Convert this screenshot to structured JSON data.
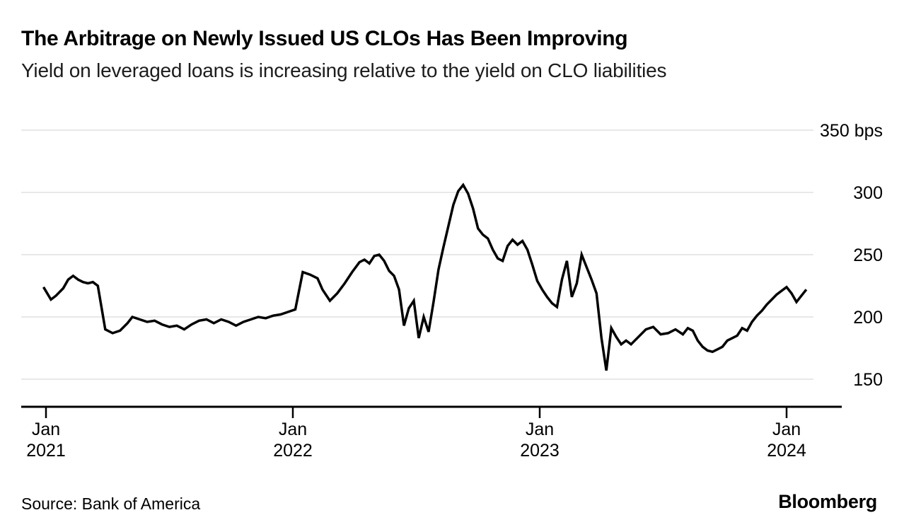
{
  "header": {
    "title": "The Arbitrage on Newly Issued US CLOs Has Been Improving",
    "subtitle": "Yield on leveraged loans is increasing relative to the yield on CLO liabilities"
  },
  "footer": {
    "source_label": "Source: Bank of America",
    "brand": "Bloomberg"
  },
  "chart_data": {
    "type": "line",
    "title": "The Arbitrage on Newly Issued US CLOs Has Been Improving",
    "subtitle": "Yield on leveraged loans is increasing relative to the yield on CLO liabilities",
    "unit": "bps",
    "line_color": "#000000",
    "grid_color": "#d9d9d9",
    "axis_color": "#000000",
    "legend": "none",
    "grid": true,
    "y_axis": {
      "side": "right",
      "ticks": [
        150,
        200,
        250,
        300,
        350
      ],
      "labels": [
        "150",
        "200",
        "250",
        "300",
        "350 bps"
      ],
      "range": [
        140,
        360
      ]
    },
    "x_axis": {
      "ticks": [
        {
          "month": "Jan",
          "year": "2021",
          "t": 2021.0
        },
        {
          "month": "Jan",
          "year": "2022",
          "t": 2022.0
        },
        {
          "month": "Jan",
          "year": "2023",
          "t": 2023.0
        },
        {
          "month": "Jan",
          "year": "2024",
          "t": 2024.0
        }
      ],
      "range": [
        2020.97,
        2024.22
      ]
    },
    "series": [
      {
        "name": "arbitrage_bps",
        "points": [
          [
            2020.99,
            224
          ],
          [
            2021.02,
            214
          ],
          [
            2021.04,
            217
          ],
          [
            2021.07,
            223
          ],
          [
            2021.09,
            230
          ],
          [
            2021.11,
            233
          ],
          [
            2021.13,
            230
          ],
          [
            2021.15,
            228
          ],
          [
            2021.17,
            227
          ],
          [
            2021.19,
            228
          ],
          [
            2021.21,
            225
          ],
          [
            2021.24,
            190
          ],
          [
            2021.27,
            187
          ],
          [
            2021.3,
            189
          ],
          [
            2021.33,
            195
          ],
          [
            2021.35,
            200
          ],
          [
            2021.38,
            198
          ],
          [
            2021.41,
            196
          ],
          [
            2021.44,
            197
          ],
          [
            2021.47,
            194
          ],
          [
            2021.5,
            192
          ],
          [
            2021.53,
            193
          ],
          [
            2021.56,
            190
          ],
          [
            2021.59,
            194
          ],
          [
            2021.62,
            197
          ],
          [
            2021.65,
            198
          ],
          [
            2021.68,
            195
          ],
          [
            2021.71,
            198
          ],
          [
            2021.74,
            196
          ],
          [
            2021.77,
            193
          ],
          [
            2021.8,
            196
          ],
          [
            2021.83,
            198
          ],
          [
            2021.86,
            200
          ],
          [
            2021.89,
            199
          ],
          [
            2021.92,
            201
          ],
          [
            2021.95,
            202
          ],
          [
            2021.98,
            204
          ],
          [
            2022.01,
            206
          ],
          [
            2022.04,
            236
          ],
          [
            2022.07,
            234
          ],
          [
            2022.1,
            231
          ],
          [
            2022.12,
            222
          ],
          [
            2022.15,
            213
          ],
          [
            2022.18,
            219
          ],
          [
            2022.21,
            227
          ],
          [
            2022.24,
            236
          ],
          [
            2022.27,
            244
          ],
          [
            2022.29,
            246
          ],
          [
            2022.31,
            243
          ],
          [
            2022.33,
            249
          ],
          [
            2022.35,
            250
          ],
          [
            2022.37,
            245
          ],
          [
            2022.39,
            237
          ],
          [
            2022.41,
            233
          ],
          [
            2022.43,
            222
          ],
          [
            2022.45,
            193
          ],
          [
            2022.47,
            207
          ],
          [
            2022.49,
            213
          ],
          [
            2022.51,
            183
          ],
          [
            2022.53,
            200
          ],
          [
            2022.55,
            188
          ],
          [
            2022.57,
            212
          ],
          [
            2022.59,
            238
          ],
          [
            2022.61,
            256
          ],
          [
            2022.63,
            273
          ],
          [
            2022.65,
            290
          ],
          [
            2022.67,
            301
          ],
          [
            2022.69,
            306
          ],
          [
            2022.71,
            299
          ],
          [
            2022.73,
            287
          ],
          [
            2022.75,
            271
          ],
          [
            2022.77,
            266
          ],
          [
            2022.79,
            263
          ],
          [
            2022.81,
            254
          ],
          [
            2022.83,
            247
          ],
          [
            2022.85,
            245
          ],
          [
            2022.87,
            257
          ],
          [
            2022.89,
            262
          ],
          [
            2022.91,
            258
          ],
          [
            2022.93,
            261
          ],
          [
            2022.95,
            254
          ],
          [
            2022.97,
            242
          ],
          [
            2022.99,
            229
          ],
          [
            2023.01,
            222
          ],
          [
            2023.03,
            216
          ],
          [
            2023.05,
            211
          ],
          [
            2023.07,
            208
          ],
          [
            2023.09,
            230
          ],
          [
            2023.11,
            245
          ],
          [
            2023.13,
            216
          ],
          [
            2023.15,
            227
          ],
          [
            2023.17,
            250
          ],
          [
            2023.19,
            240
          ],
          [
            2023.21,
            230
          ],
          [
            2023.23,
            219
          ],
          [
            2023.25,
            183
          ],
          [
            2023.27,
            157
          ],
          [
            2023.29,
            191
          ],
          [
            2023.31,
            184
          ],
          [
            2023.33,
            178
          ],
          [
            2023.35,
            181
          ],
          [
            2023.37,
            178
          ],
          [
            2023.4,
            184
          ],
          [
            2023.43,
            190
          ],
          [
            2023.46,
            192
          ],
          [
            2023.49,
            186
          ],
          [
            2023.52,
            187
          ],
          [
            2023.55,
            190
          ],
          [
            2023.58,
            186
          ],
          [
            2023.6,
            191
          ],
          [
            2023.62,
            189
          ],
          [
            2023.64,
            181
          ],
          [
            2023.66,
            176
          ],
          [
            2023.68,
            173
          ],
          [
            2023.7,
            172
          ],
          [
            2023.72,
            174
          ],
          [
            2023.74,
            176
          ],
          [
            2023.76,
            181
          ],
          [
            2023.78,
            183
          ],
          [
            2023.8,
            185
          ],
          [
            2023.82,
            191
          ],
          [
            2023.84,
            189
          ],
          [
            2023.86,
            196
          ],
          [
            2023.88,
            201
          ],
          [
            2023.9,
            205
          ],
          [
            2023.92,
            210
          ],
          [
            2023.94,
            214
          ],
          [
            2023.96,
            218
          ],
          [
            2023.98,
            221
          ],
          [
            2024.0,
            224
          ],
          [
            2024.02,
            219
          ],
          [
            2024.04,
            212
          ],
          [
            2024.06,
            217
          ],
          [
            2024.08,
            222
          ]
        ]
      }
    ]
  }
}
